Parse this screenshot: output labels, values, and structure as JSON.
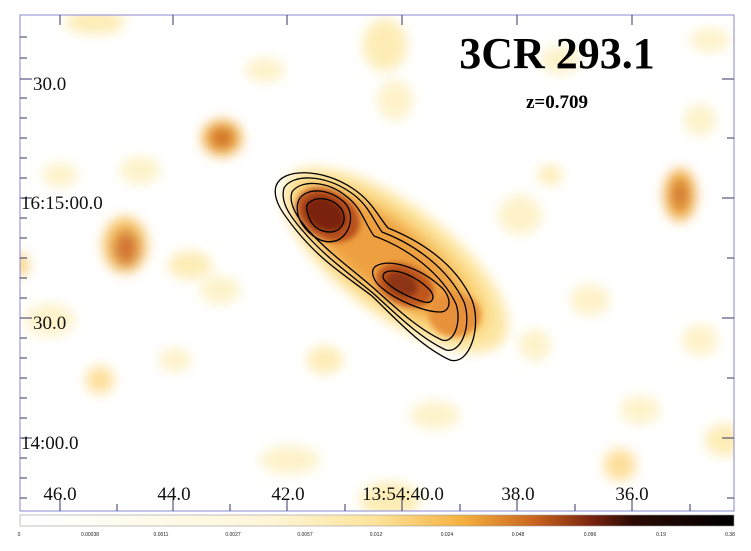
{
  "image": {
    "title": "3CR 293.1",
    "redshift_label": "z=0.709",
    "colormap": "heat (white-yellow-orange-red-black)",
    "y_axis": {
      "tick_labels": [
        "30.0",
        "16:15:00.0",
        "30.0",
        "14:00.0"
      ]
    },
    "x_axis": {
      "tick_labels": [
        "46.0",
        "44.0",
        "42.0",
        "13:54:40.0",
        "38.0",
        "36.0"
      ]
    },
    "colorbar": {
      "tick_labels": [
        "0",
        "0.00038",
        "0.0011",
        "0.0027",
        "0.0057",
        "0.012",
        "0.024",
        "0.048",
        "0.096",
        "0.19",
        "0.38"
      ]
    }
  }
}
